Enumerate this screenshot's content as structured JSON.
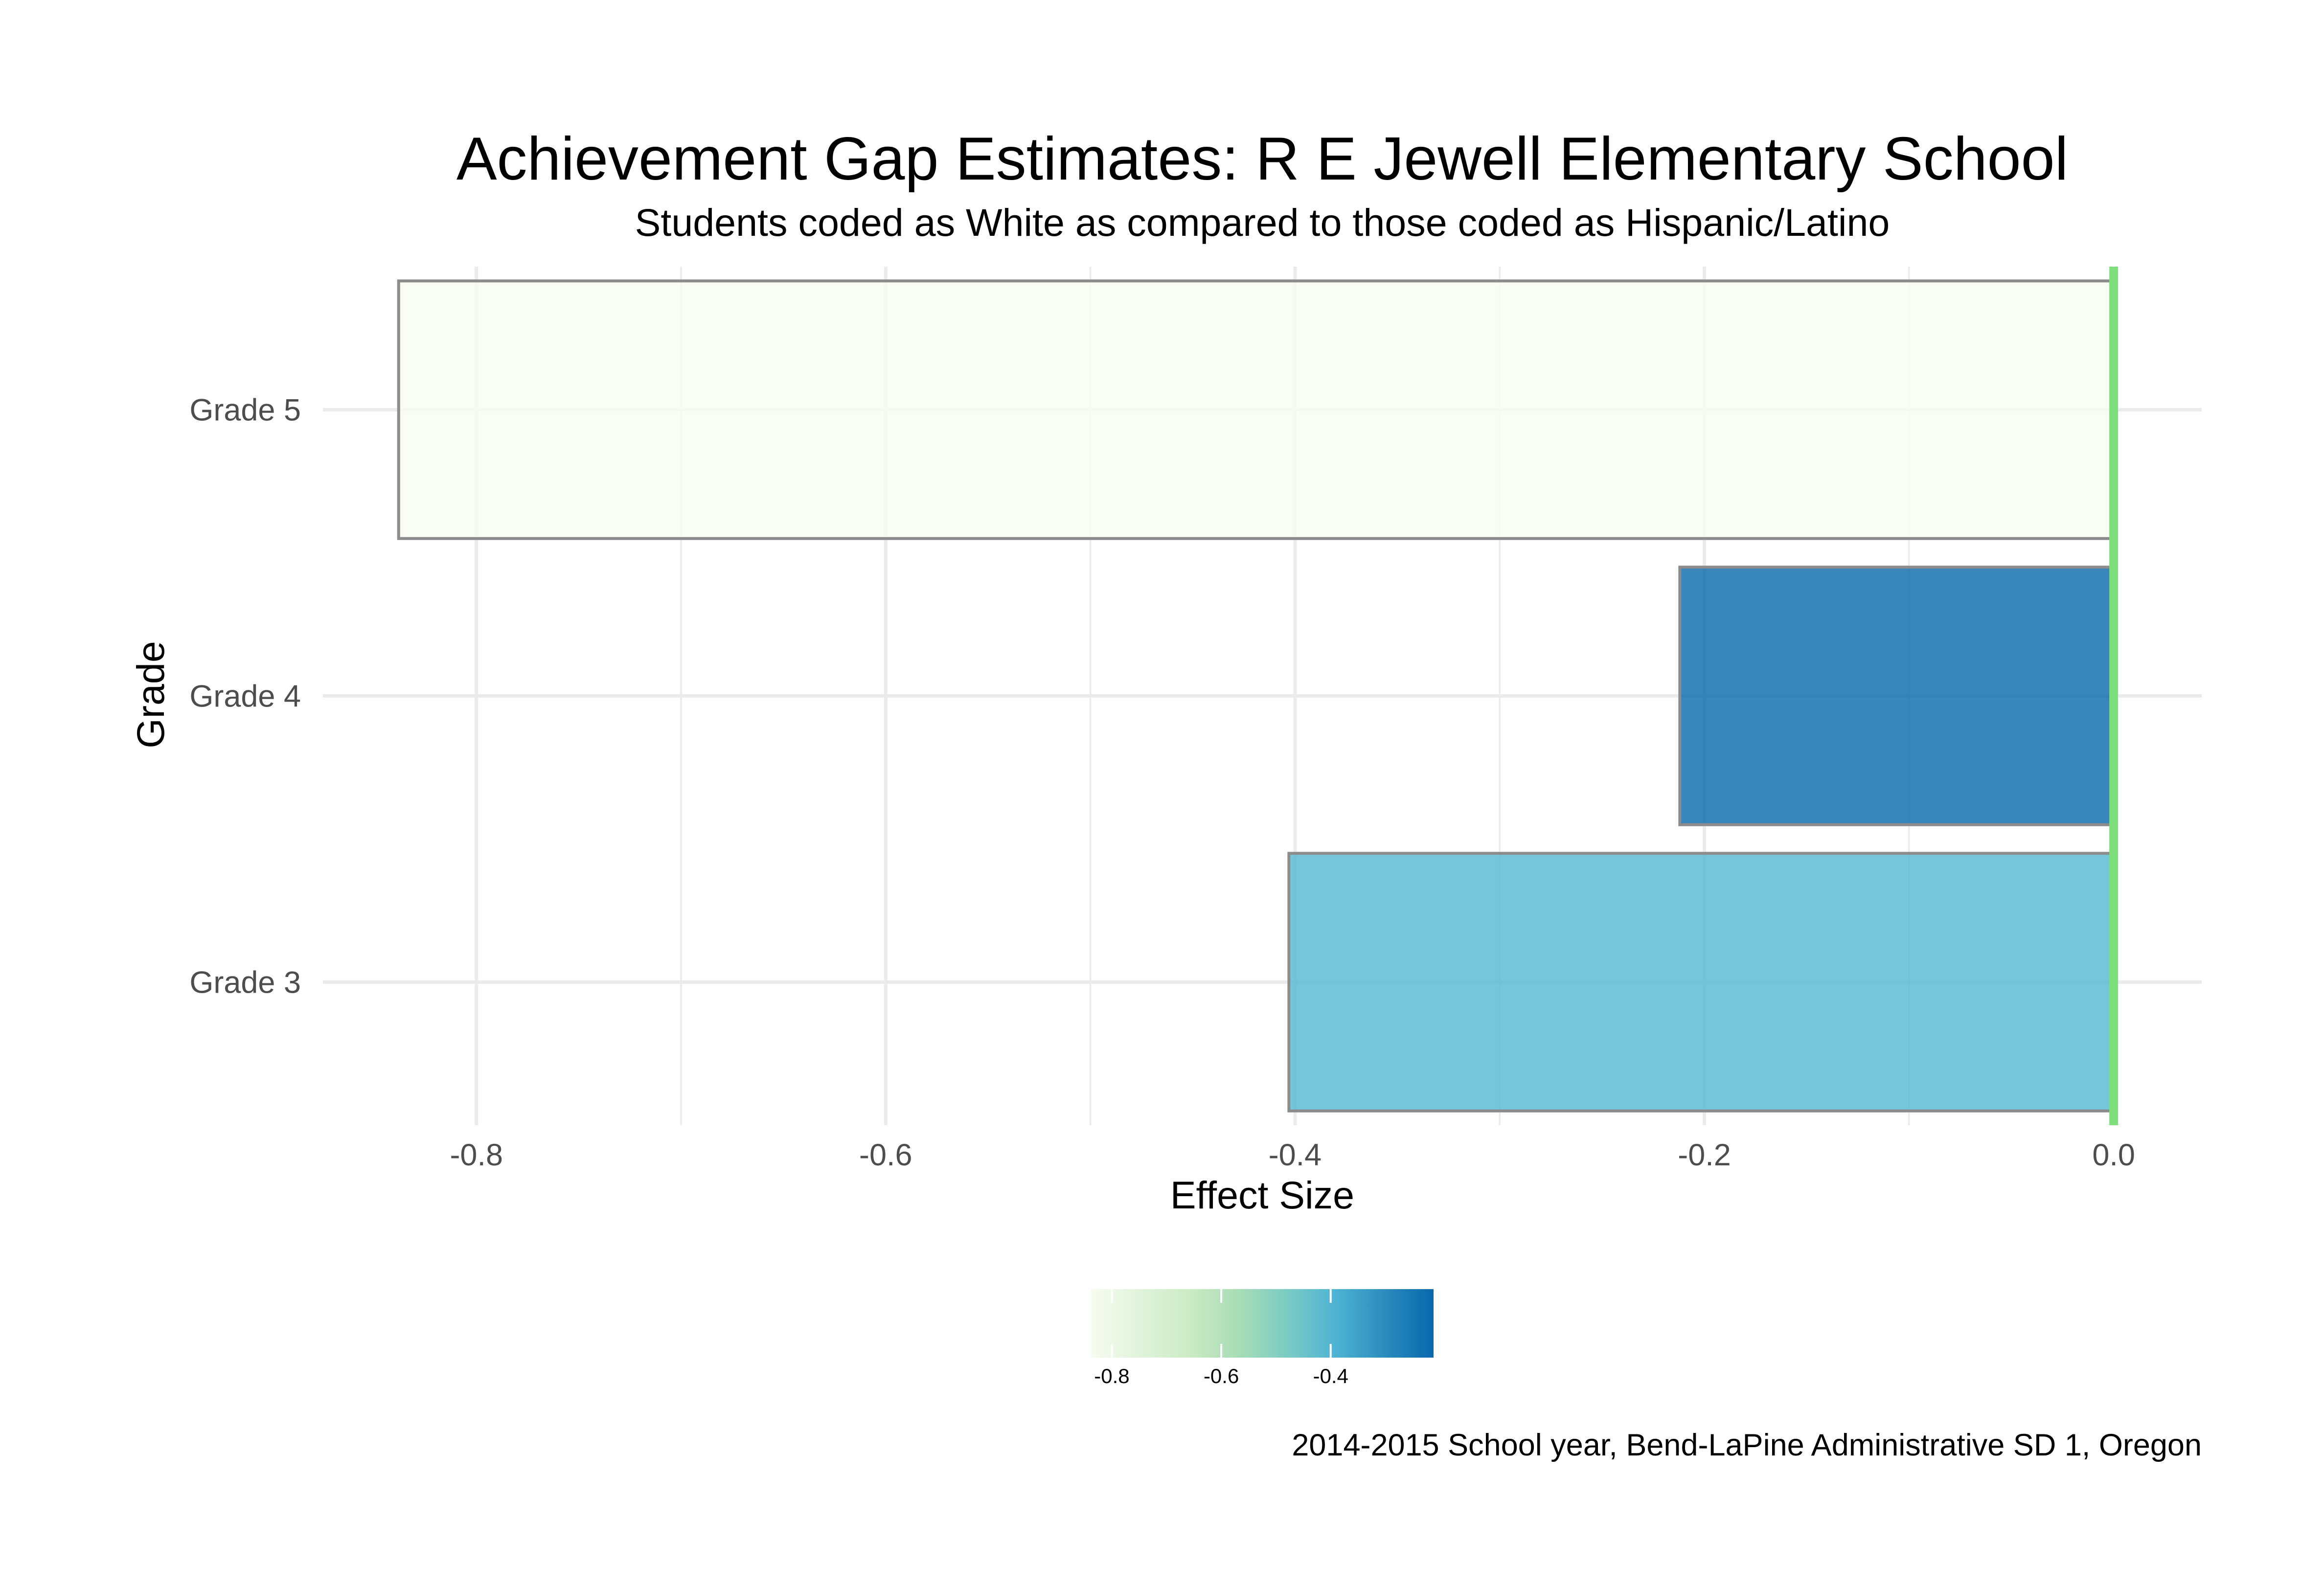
{
  "chart_data": {
    "type": "bar",
    "orientation": "horizontal",
    "title": "Achievement Gap Estimates: R E Jewell Elementary School",
    "subtitle": "Students coded as White as compared to those coded as Hispanic/Latino",
    "xlabel": "Effect Size",
    "ylabel": "Grade",
    "caption": "2014-2015 School year, Bend-LaPine Administrative SD 1, Oregon",
    "categories": [
      "Grade 3",
      "Grade 4",
      "Grade 5"
    ],
    "values": [
      -0.403,
      -0.212,
      -0.838
    ],
    "xlim": [
      -0.875,
      0.043
    ],
    "x_ticks": [
      {
        "value": -0.8,
        "label": "-0.8"
      },
      {
        "value": -0.6,
        "label": "-0.6"
      },
      {
        "value": -0.4,
        "label": "-0.4"
      },
      {
        "value": -0.2,
        "label": "-0.2"
      },
      {
        "value": 0.0,
        "label": "0.0"
      }
    ],
    "reference_line": {
      "value": 0.0,
      "color": "#7de07d"
    },
    "grid": true,
    "legend": {
      "type": "colorbar",
      "placement": "bottom",
      "range": [
        -0.838,
        -0.212
      ],
      "ticks": [
        {
          "value": -0.8,
          "label": "-0.8"
        },
        {
          "value": -0.6,
          "label": "-0.6"
        },
        {
          "value": -0.4,
          "label": "-0.4"
        }
      ],
      "colors": [
        "#f7fcf0",
        "#e0f3db",
        "#ccebc5",
        "#a8ddb5",
        "#7bccc4",
        "#4eb3d3",
        "#2b8cbe",
        "#0868ac"
      ]
    },
    "bar_outline_color": "#8c8c8c"
  }
}
